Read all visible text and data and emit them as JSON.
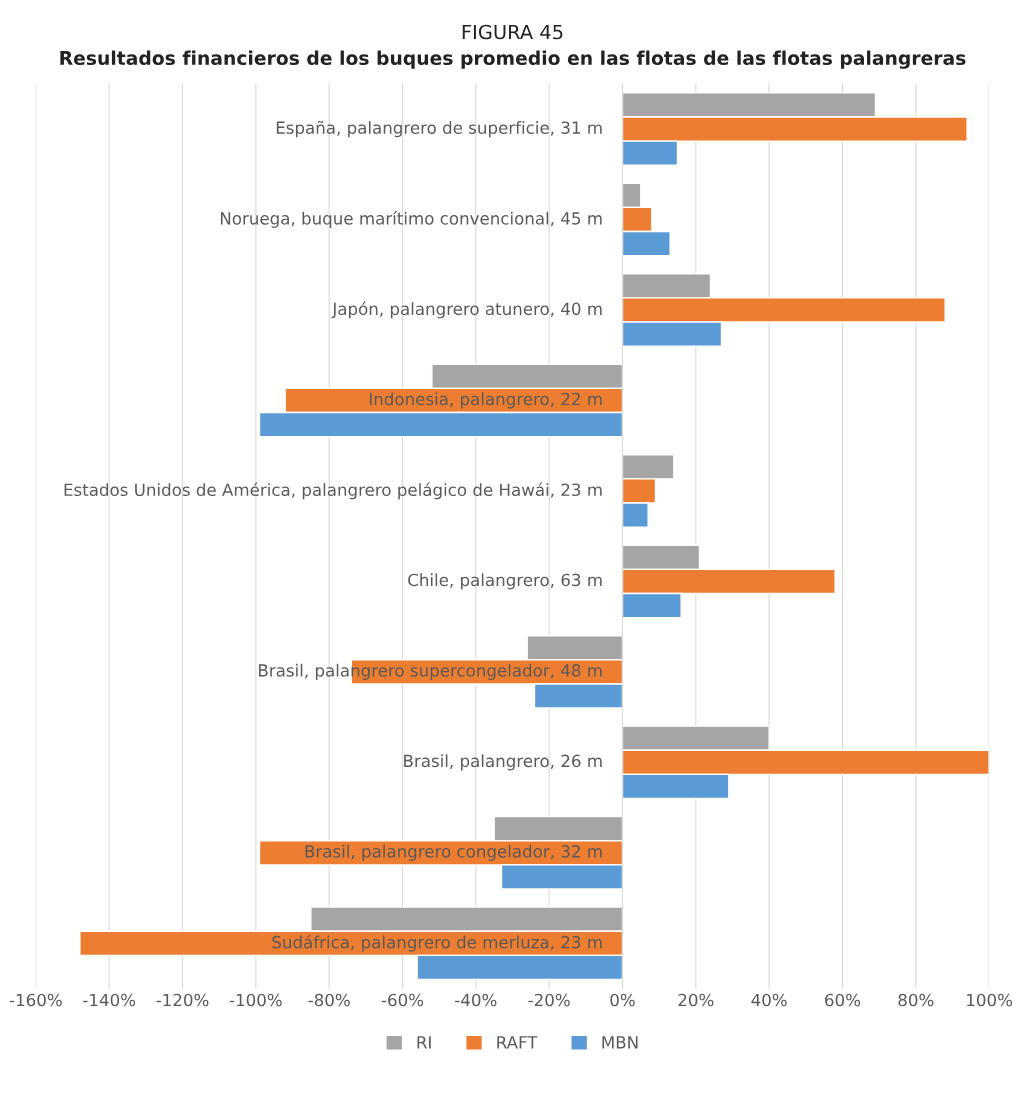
{
  "chart_data": {
    "type": "bar",
    "orientation": "horizontal",
    "title": "FIGURA 45",
    "subtitle": "Resultados financieros de los buques promedio en las flotas de las flotas palangreras",
    "categories": [
      "España, palangrero de superficie, 31 m",
      "Noruega, buque marítimo convencional, 45 m",
      "Japón, palangrero atunero, 40 m",
      "Indonesia, palangrero, 22 m",
      "Estados Unidos de América, palangrero pelágico de Hawái, 23 m",
      "Chile, palangrero, 63 m",
      "Brasil, palangrero supercongelador, 48 m",
      "Brasil, palangrero, 26 m",
      "Brasil, palangrero congelador, 32 m",
      "Sudáfrica, palangrero de merluza, 23 m"
    ],
    "series": [
      {
        "name": "RI",
        "color": "#a5a5a5",
        "values": [
          69,
          5,
          24,
          -52,
          14,
          21,
          -26,
          40,
          -35,
          -85
        ]
      },
      {
        "name": "RAFT",
        "color": "#ed7d31",
        "values": [
          94,
          8,
          88,
          -92,
          9,
          58,
          -74,
          100,
          -99,
          -148
        ]
      },
      {
        "name": "MBN",
        "color": "#5b9bd5",
        "values": [
          15,
          13,
          27,
          -99,
          7,
          16,
          -24,
          29,
          -33,
          -56
        ]
      }
    ],
    "xlim": [
      -160,
      100
    ],
    "xticks": [
      {
        "value": -160,
        "label": "-160%"
      },
      {
        "value": -140,
        "label": "-140%"
      },
      {
        "value": -120,
        "label": "-120%"
      },
      {
        "value": -100,
        "label": "-100%"
      },
      {
        "value": -80,
        "label": "-80%"
      },
      {
        "value": -60,
        "label": "-60%"
      },
      {
        "value": -40,
        "label": "-40%"
      },
      {
        "value": -20,
        "label": "-20%"
      },
      {
        "value": 0,
        "label": "0%"
      },
      {
        "value": 20,
        "label": "20%"
      },
      {
        "value": 40,
        "label": "40%"
      },
      {
        "value": 60,
        "label": "60%"
      },
      {
        "value": 80,
        "label": "80%"
      },
      {
        "value": 100,
        "label": "100%"
      }
    ],
    "grid": "x",
    "legend": "bottom"
  }
}
